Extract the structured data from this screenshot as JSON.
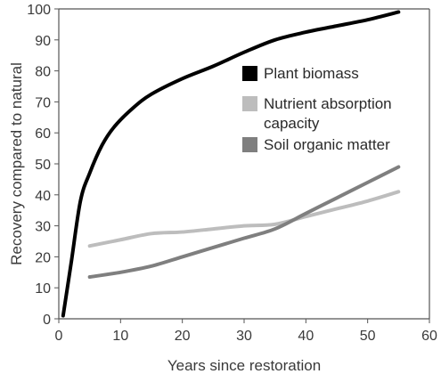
{
  "chart_data": {
    "type": "line",
    "title": "",
    "xlabel": "Years since restoration",
    "ylabel": "Recovery compared to natural",
    "xlim": [
      0,
      60
    ],
    "ylim": [
      0,
      100
    ],
    "x_ticks": [
      "0",
      "10",
      "20",
      "30",
      "40",
      "50",
      "60"
    ],
    "y_ticks": [
      "0",
      "10",
      "20",
      "30",
      "40",
      "50",
      "60",
      "70",
      "80",
      "90",
      "100"
    ],
    "grid": false,
    "legend_position": "right",
    "series": [
      {
        "name": "Plant biomass",
        "color": "#000000",
        "points": [
          [
            0.7,
            1
          ],
          [
            2,
            18
          ],
          [
            3.5,
            38
          ],
          [
            5,
            47
          ],
          [
            7,
            56
          ],
          [
            9,
            62
          ],
          [
            12,
            68
          ],
          [
            15,
            72.5
          ],
          [
            20,
            77.5
          ],
          [
            25,
            81.5
          ],
          [
            30,
            86
          ],
          [
            35,
            90
          ],
          [
            40,
            92.5
          ],
          [
            45,
            94.5
          ],
          [
            50,
            96.5
          ],
          [
            55,
            99
          ]
        ]
      },
      {
        "name": "Nutrient absorption capacity",
        "label_lines": [
          "Nutrient absorption",
          "capacity"
        ],
        "color": "#bdbdbd",
        "points": [
          [
            5,
            23.5
          ],
          [
            10,
            25.5
          ],
          [
            15,
            27.5
          ],
          [
            20,
            28
          ],
          [
            25,
            29
          ],
          [
            30,
            30
          ],
          [
            35,
            30.5
          ],
          [
            40,
            33
          ],
          [
            45,
            35.5
          ],
          [
            50,
            38
          ],
          [
            55,
            41
          ]
        ]
      },
      {
        "name": "Soil organic matter",
        "color": "#7f7f7f",
        "points": [
          [
            5,
            13.5
          ],
          [
            10,
            15
          ],
          [
            15,
            17
          ],
          [
            20,
            20
          ],
          [
            25,
            23
          ],
          [
            30,
            26
          ],
          [
            35,
            29
          ],
          [
            40,
            34
          ],
          [
            45,
            39
          ],
          [
            50,
            44
          ],
          [
            55,
            49
          ]
        ]
      }
    ]
  }
}
